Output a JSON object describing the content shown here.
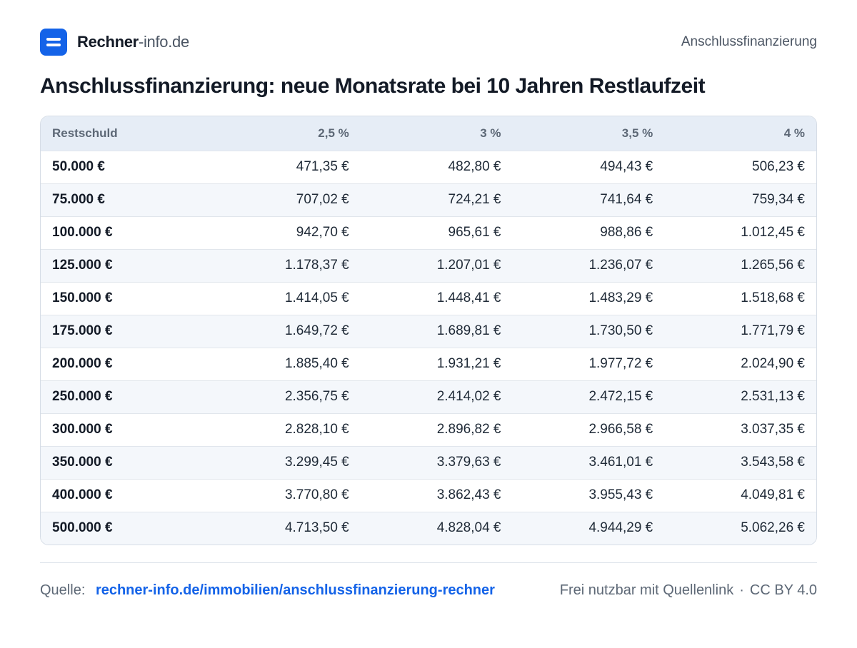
{
  "header": {
    "brand_name": "Rechner",
    "brand_suffix": "-info.de",
    "nav_link": "Anschlussfinanzierung"
  },
  "page": {
    "title": "Anschlussfinanzierung: neue Monatsrate bei 10 Jahren Restlaufzeit"
  },
  "table": {
    "columns": [
      "Restschuld",
      "2,5 %",
      "3 %",
      "3,5 %",
      "4 %"
    ],
    "rows": [
      [
        "50.000 €",
        "471,35 €",
        "482,80 €",
        "494,43 €",
        "506,23 €"
      ],
      [
        "75.000 €",
        "707,02 €",
        "724,21 €",
        "741,64 €",
        "759,34 €"
      ],
      [
        "100.000 €",
        "942,70 €",
        "965,61 €",
        "988,86 €",
        "1.012,45 €"
      ],
      [
        "125.000 €",
        "1.178,37 €",
        "1.207,01 €",
        "1.236,07 €",
        "1.265,56 €"
      ],
      [
        "150.000 €",
        "1.414,05 €",
        "1.448,41 €",
        "1.483,29 €",
        "1.518,68 €"
      ],
      [
        "175.000 €",
        "1.649,72 €",
        "1.689,81 €",
        "1.730,50 €",
        "1.771,79 €"
      ],
      [
        "200.000 €",
        "1.885,40 €",
        "1.931,21 €",
        "1.977,72 €",
        "2.024,90 €"
      ],
      [
        "250.000 €",
        "2.356,75 €",
        "2.414,02 €",
        "2.472,15 €",
        "2.531,13 €"
      ],
      [
        "300.000 €",
        "2.828,10 €",
        "2.896,82 €",
        "2.966,58 €",
        "3.037,35 €"
      ],
      [
        "350.000 €",
        "3.299,45 €",
        "3.379,63 €",
        "3.461,01 €",
        "3.543,58 €"
      ],
      [
        "400.000 €",
        "3.770,80 €",
        "3.862,43 €",
        "3.955,43 €",
        "4.049,81 €"
      ],
      [
        "500.000 €",
        "4.713,50 €",
        "4.828,04 €",
        "4.944,29 €",
        "5.062,26 €"
      ]
    ]
  },
  "footer": {
    "source_label": "Quelle:",
    "source_link": "rechner-info.de/immobilien/anschlussfinanzierung-rechner",
    "license_text": "Frei nutzbar mit Quellenlink",
    "separator": "·",
    "license": "CC BY 4.0"
  },
  "colors": {
    "brand": "#1463e8",
    "header_row": "#e6edf6",
    "zebra_row": "#f4f7fb"
  },
  "icons": {
    "logo": "rechner-logo-icon"
  }
}
